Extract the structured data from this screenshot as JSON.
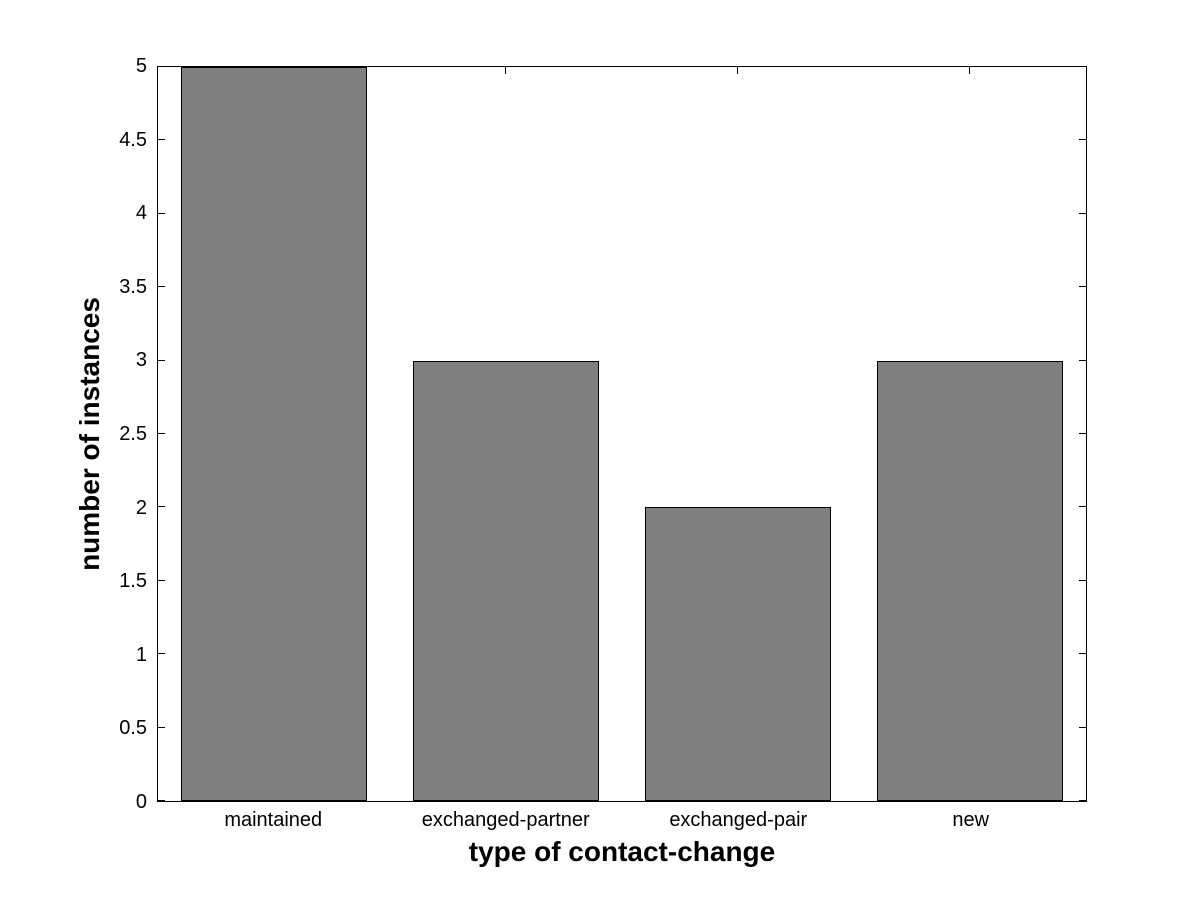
{
  "figure": {
    "background": "#ffffff"
  },
  "chart_data": {
    "type": "bar",
    "title": "",
    "xlabel": "type of contact-change",
    "ylabel": "number of instances",
    "categories": [
      "maintained",
      "exchanged-partner",
      "exchanged-pair",
      "new"
    ],
    "values": [
      5,
      3,
      2,
      3
    ],
    "ylim": [
      0,
      5
    ],
    "yticks": [
      0,
      0.5,
      1,
      1.5,
      2,
      2.5,
      3,
      3.5,
      4,
      4.5,
      5
    ],
    "ytick_labels": [
      "0",
      "0.5",
      "1",
      "1.5",
      "2",
      "2.5",
      "3",
      "3.5",
      "4",
      "4.5",
      "5"
    ],
    "bar_width_fraction": 0.8,
    "bar_fill": "#7f7f7f",
    "bar_edge": "#000000",
    "axis_color": "#000000",
    "grid": false,
    "box": true,
    "tick_direction": "in"
  }
}
